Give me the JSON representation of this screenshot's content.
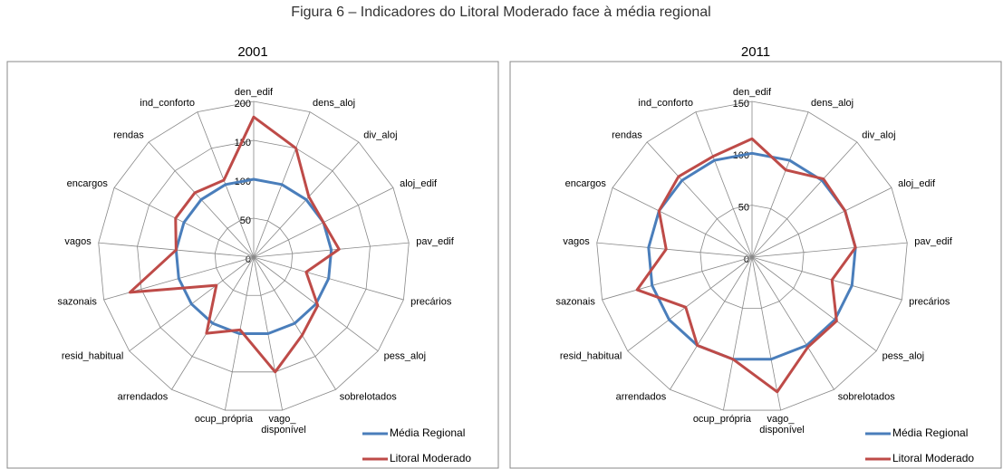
{
  "title": "Figura 6 – Indicadores do Litoral Moderado face à média regional",
  "chart_data": [
    {
      "type": "radar",
      "title": "2001",
      "categories": [
        "den_edif",
        "dens_aloj",
        "div_aloj",
        "aloj_edif",
        "pav_edif",
        "precários",
        "pess_aloj",
        "sobrelotados",
        "vago_ disponível",
        "ocup_própria",
        "arrendados",
        "resid_habitual",
        "sazonais",
        "vagos",
        "encargos",
        "rendas",
        "ind_conforto"
      ],
      "series": [
        {
          "name": "Média Regional",
          "color": "#4a7ebb",
          "values": [
            100,
            100,
            100,
            100,
            100,
            100,
            100,
            100,
            100,
            100,
            100,
            100,
            100,
            100,
            100,
            100,
            100
          ]
        },
        {
          "name": "Litoral Moderado",
          "color": "#be4b48",
          "values": [
            180,
            150,
            105,
            100,
            110,
            70,
            103,
            118,
            150,
            95,
            115,
            60,
            165,
            100,
            112,
            112,
            106
          ]
        }
      ],
      "rlim": [
        0,
        200
      ],
      "rticks": [
        0,
        50,
        100,
        150,
        200
      ],
      "legend": "lower right"
    },
    {
      "type": "radar",
      "title": "2011",
      "categories": [
        "den_edif",
        "dens_aloj",
        "div_aloj",
        "aloj_edif",
        "pav_edif",
        "precários",
        "pess_aloj",
        "sobrelotados",
        "vago_ disponível",
        "ocup_própria",
        "arrendados",
        "resid_habitual",
        "sazonais",
        "vagos",
        "encargos",
        "rendas",
        "ind_conforto"
      ],
      "series": [
        {
          "name": "Média Regional",
          "color": "#4a7ebb",
          "values": [
            100,
            100,
            100,
            100,
            100,
            100,
            100,
            100,
            100,
            100,
            100,
            100,
            100,
            100,
            100,
            100,
            100
          ]
        },
        {
          "name": "Litoral Moderado",
          "color": "#be4b48",
          "values": [
            114,
            90,
            102,
            100,
            100,
            80,
            102,
            102,
            132,
            100,
            100,
            80,
            115,
            83,
            100,
            105,
            104
          ]
        }
      ],
      "rlim": [
        0,
        150
      ],
      "rticks": [
        0,
        50,
        100,
        150
      ],
      "legend": "lower right"
    }
  ]
}
